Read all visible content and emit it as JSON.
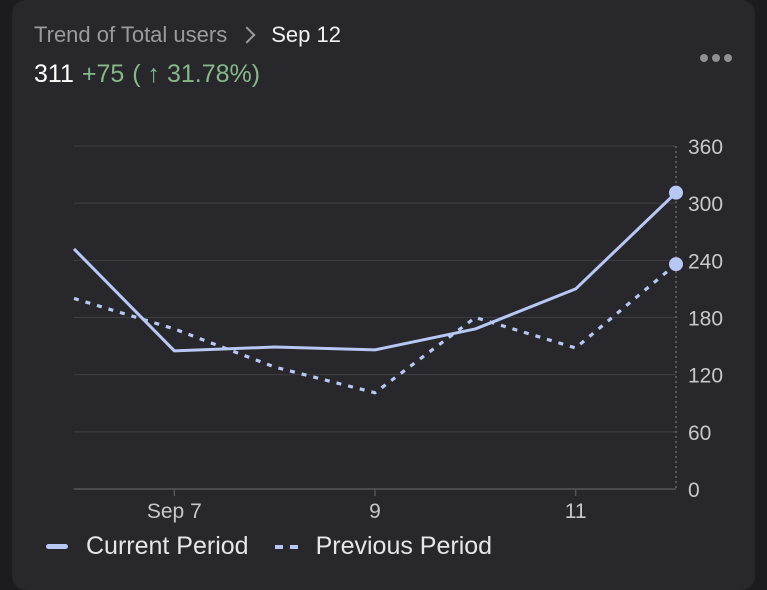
{
  "header": {
    "breadcrumb_parent": "Trend of Total users",
    "breadcrumb_current": "Sep 12",
    "value": "311",
    "delta": "+75",
    "pct": "( ↑ 31.78%)"
  },
  "icons": {
    "more": "more-horizontal-icon",
    "separator": "chevron-right-icon"
  },
  "colors": {
    "series": "#b8c8f4",
    "positive": "#86b88a"
  },
  "chart_data": {
    "type": "line",
    "x": [
      "Sep 6",
      "Sep 7",
      "Sep 8",
      "Sep 9",
      "Sep 10",
      "Sep 11",
      "Sep 12"
    ],
    "x_tick_labels": [
      {
        "index": 1,
        "label": "Sep 7"
      },
      {
        "index": 3,
        "label": "9"
      },
      {
        "index": 5,
        "label": "11"
      }
    ],
    "ylim": [
      0,
      360
    ],
    "y_ticks": [
      0,
      60,
      120,
      180,
      240,
      300,
      360
    ],
    "y_axis_side": "right",
    "grid": true,
    "legend_position": "bottom-left",
    "series": [
      {
        "name": "Current Period",
        "style": "solid",
        "values": [
          252,
          145,
          149,
          146,
          168,
          210,
          311
        ]
      },
      {
        "name": "Previous Period",
        "style": "dotted",
        "values": [
          200,
          168,
          128,
          101,
          180,
          148,
          236
        ]
      }
    ]
  }
}
